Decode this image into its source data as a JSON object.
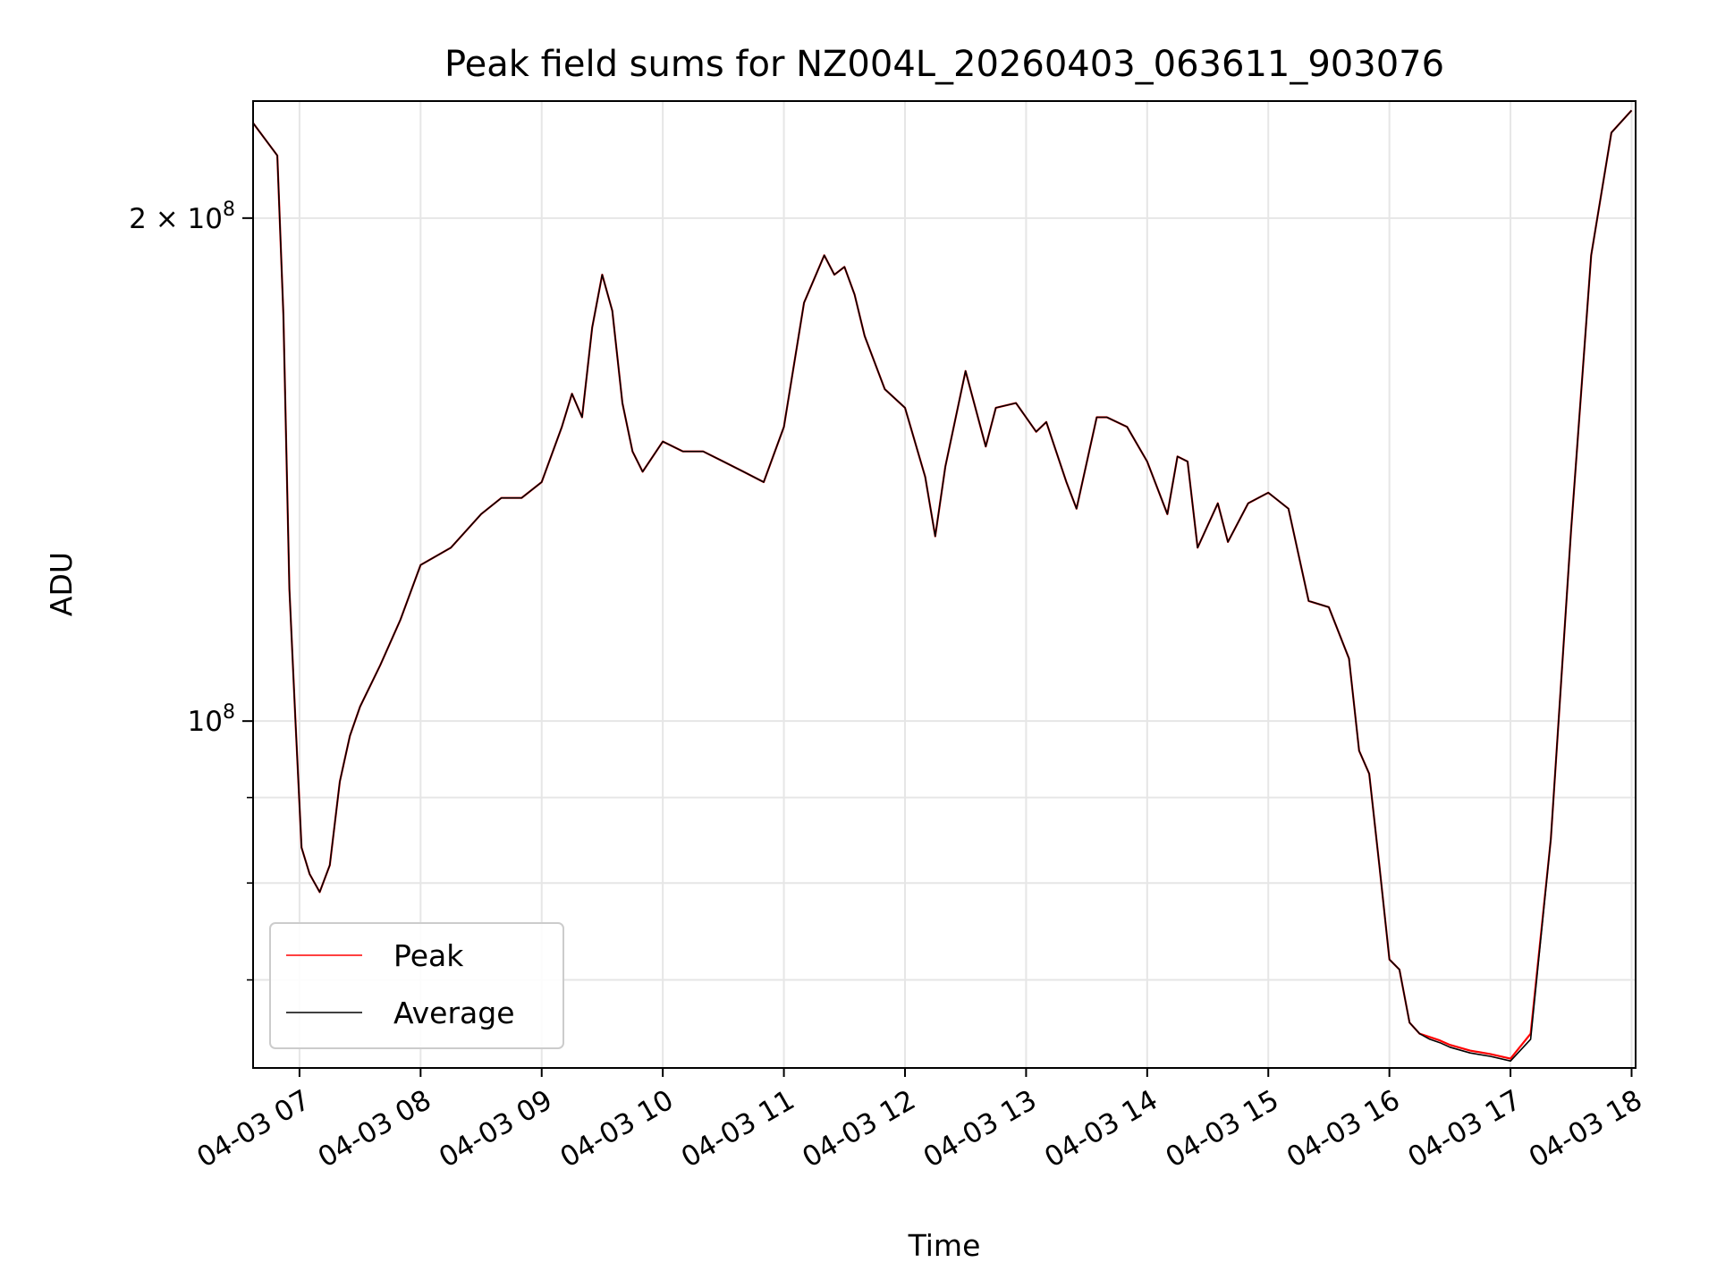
{
  "chart_data": {
    "type": "line",
    "title": "Peak field sums for NZ004L_20260403_063611_903076",
    "xlabel": "Time",
    "ylabel": "ADU",
    "yscale": "log",
    "xlim": [
      "04-03 06:37",
      "04-03 18:02"
    ],
    "ylim": [
      62000000,
      235000000
    ],
    "grid": true,
    "legend_position": "lower-left",
    "x_ticks": [
      "04-03 07",
      "04-03 08",
      "04-03 09",
      "04-03 10",
      "04-03 11",
      "04-03 12",
      "04-03 13",
      "04-03 14",
      "04-03 15",
      "04-03 16",
      "04-03 17",
      "04-03 18"
    ],
    "y_ticks": [
      {
        "value": 200000000,
        "label_base": "2 × 10",
        "label_exp": "8"
      },
      {
        "value": 100000000,
        "label_base": "10",
        "label_exp": "8"
      }
    ],
    "y_minor_ticks": [
      90000000,
      80000000,
      70000000
    ],
    "x": [
      "04-03 06:37",
      "04-03 06:49",
      "04-03 06:52",
      "04-03 06:55",
      "04-03 06:58",
      "04-03 07:01",
      "04-03 07:05",
      "04-03 07:10",
      "04-03 07:15",
      "04-03 07:20",
      "04-03 07:25",
      "04-03 07:30",
      "04-03 07:40",
      "04-03 07:50",
      "04-03 08:00",
      "04-03 08:15",
      "04-03 08:30",
      "04-03 08:40",
      "04-03 08:50",
      "04-03 09:00",
      "04-03 09:10",
      "04-03 09:15",
      "04-03 09:20",
      "04-03 09:25",
      "04-03 09:30",
      "04-03 09:35",
      "04-03 09:40",
      "04-03 09:45",
      "04-03 09:50",
      "04-03 10:00",
      "04-03 10:10",
      "04-03 10:20",
      "04-03 10:30",
      "04-03 10:40",
      "04-03 10:50",
      "04-03 11:00",
      "04-03 11:10",
      "04-03 11:20",
      "04-03 11:25",
      "04-03 11:30",
      "04-03 11:35",
      "04-03 11:40",
      "04-03 11:50",
      "04-03 12:00",
      "04-03 12:10",
      "04-03 12:15",
      "04-03 12:20",
      "04-03 12:30",
      "04-03 12:40",
      "04-03 12:45",
      "04-03 12:55",
      "04-03 13:05",
      "04-03 13:10",
      "04-03 13:20",
      "04-03 13:25",
      "04-03 13:35",
      "04-03 13:40",
      "04-03 13:50",
      "04-03 14:00",
      "04-03 14:10",
      "04-03 14:15",
      "04-03 14:20",
      "04-03 14:25",
      "04-03 14:35",
      "04-03 14:40",
      "04-03 14:50",
      "04-03 15:00",
      "04-03 15:10",
      "04-03 15:20",
      "04-03 15:30",
      "04-03 15:40",
      "04-03 15:45",
      "04-03 15:50",
      "04-03 15:55",
      "04-03 16:00",
      "04-03 16:05",
      "04-03 16:10",
      "04-03 16:15",
      "04-03 16:20",
      "04-03 16:25",
      "04-03 16:30",
      "04-03 16:40",
      "04-03 16:50",
      "04-03 17:00",
      "04-03 17:10",
      "04-03 17:20",
      "04-03 17:30",
      "04-03 17:40",
      "04-03 17:50",
      "04-03 18:00"
    ],
    "series": [
      {
        "name": "Peak",
        "color": "#ff0000",
        "values": [
          228000000,
          218000000,
          175000000,
          120000000,
          100000000,
          84000000,
          81000000,
          79000000,
          82000000,
          92000000,
          98000000,
          102000000,
          108000000,
          115000000,
          124000000,
          127000000,
          133000000,
          136000000,
          136000000,
          139000000,
          150000000,
          157000000,
          152000000,
          172000000,
          185000000,
          176000000,
          155000000,
          145000000,
          141000000,
          147000000,
          145000000,
          145000000,
          143000000,
          141000000,
          139000000,
          150000000,
          178000000,
          190000000,
          185000000,
          187000000,
          180000000,
          170000000,
          158000000,
          154000000,
          140000000,
          129000000,
          142000000,
          162000000,
          146000000,
          154000000,
          155000000,
          149000000,
          151000000,
          139000000,
          134000000,
          152000000,
          152000000,
          150000000,
          143000000,
          133000000,
          144000000,
          143000000,
          127000000,
          135000000,
          128000000,
          135000000,
          137000000,
          134000000,
          118000000,
          117000000,
          109000000,
          96000000,
          93000000,
          82000000,
          72000000,
          71000000,
          66000000,
          65000000,
          64700000,
          64400000,
          64000000,
          63500000,
          63200000,
          62800000,
          65000000,
          85000000,
          130000000,
          190000000,
          225000000,
          232000000
        ]
      },
      {
        "name": "Average",
        "color": "#000000",
        "values": [
          228000000,
          218000000,
          175000000,
          120000000,
          100000000,
          84000000,
          81000000,
          79000000,
          82000000,
          92000000,
          98000000,
          102000000,
          108000000,
          115000000,
          124000000,
          127000000,
          133000000,
          136000000,
          136000000,
          139000000,
          150000000,
          157000000,
          152000000,
          172000000,
          185000000,
          176000000,
          155000000,
          145000000,
          141000000,
          147000000,
          145000000,
          145000000,
          143000000,
          141000000,
          139000000,
          150000000,
          178000000,
          190000000,
          185000000,
          187000000,
          180000000,
          170000000,
          158000000,
          154000000,
          140000000,
          129000000,
          142000000,
          162000000,
          146000000,
          154000000,
          155000000,
          149000000,
          151000000,
          139000000,
          134000000,
          152000000,
          152000000,
          150000000,
          143000000,
          133000000,
          144000000,
          143000000,
          127000000,
          135000000,
          128000000,
          135000000,
          137000000,
          134000000,
          118000000,
          117000000,
          109000000,
          96000000,
          93000000,
          82000000,
          72000000,
          71000000,
          66000000,
          65000000,
          64500000,
          64200000,
          63800000,
          63300000,
          63000000,
          62600000,
          64500000,
          85000000,
          130000000,
          190000000,
          225000000,
          232000000
        ]
      }
    ]
  }
}
